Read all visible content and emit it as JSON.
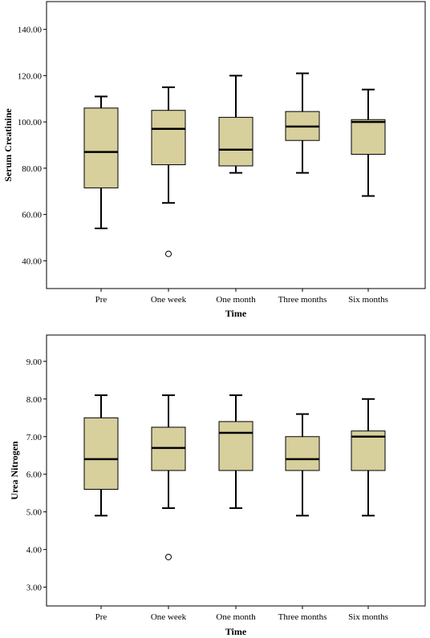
{
  "chart_data": [
    {
      "type": "box",
      "title": "",
      "xlabel": "Time",
      "ylabel": "Serum Creatinine",
      "ylim": [
        28,
        152
      ],
      "yticks": [
        "40.00",
        "60.00",
        "80.00",
        "100.00",
        "120.00",
        "140.00"
      ],
      "grid": false,
      "box_color": "#d7cf9c",
      "categories": [
        "Pre",
        "One week",
        "One month",
        "Three months",
        "Six months"
      ],
      "boxes": [
        {
          "min": 54,
          "q1": 71.5,
          "median": 87,
          "q3": 106,
          "max": 111,
          "outliers": []
        },
        {
          "min": 65,
          "q1": 81.5,
          "median": 97,
          "q3": 105,
          "max": 115,
          "outliers": [
            43
          ]
        },
        {
          "min": 78,
          "q1": 81,
          "median": 88,
          "q3": 102,
          "max": 120,
          "outliers": []
        },
        {
          "min": 78,
          "q1": 92,
          "median": 98,
          "q3": 104.5,
          "max": 121,
          "outliers": []
        },
        {
          "min": 68,
          "q1": 86,
          "median": 100,
          "q3": 101,
          "max": 114,
          "outliers": []
        }
      ]
    },
    {
      "type": "box",
      "title": "",
      "xlabel": "Time",
      "ylabel": "Urea Nitrogen",
      "ylim": [
        2.5,
        9.7
      ],
      "yticks": [
        "3.00",
        "4.00",
        "5.00",
        "6.00",
        "7.00",
        "8.00",
        "9.00"
      ],
      "grid": false,
      "box_color": "#d7cf9c",
      "categories": [
        "Pre",
        "One week",
        "One month",
        "Three months",
        "Six months"
      ],
      "boxes": [
        {
          "min": 4.9,
          "q1": 5.6,
          "median": 6.4,
          "q3": 7.5,
          "max": 8.1,
          "outliers": []
        },
        {
          "min": 5.1,
          "q1": 6.1,
          "median": 6.7,
          "q3": 7.25,
          "max": 8.1,
          "outliers": [
            3.8
          ]
        },
        {
          "min": 5.1,
          "q1": 6.1,
          "median": 7.1,
          "q3": 7.4,
          "max": 8.1,
          "outliers": []
        },
        {
          "min": 4.9,
          "q1": 6.1,
          "median": 6.4,
          "q3": 7.0,
          "max": 7.6,
          "outliers": []
        },
        {
          "min": 4.9,
          "q1": 6.1,
          "median": 7.0,
          "q3": 7.15,
          "max": 8.0,
          "outliers": []
        }
      ]
    }
  ]
}
